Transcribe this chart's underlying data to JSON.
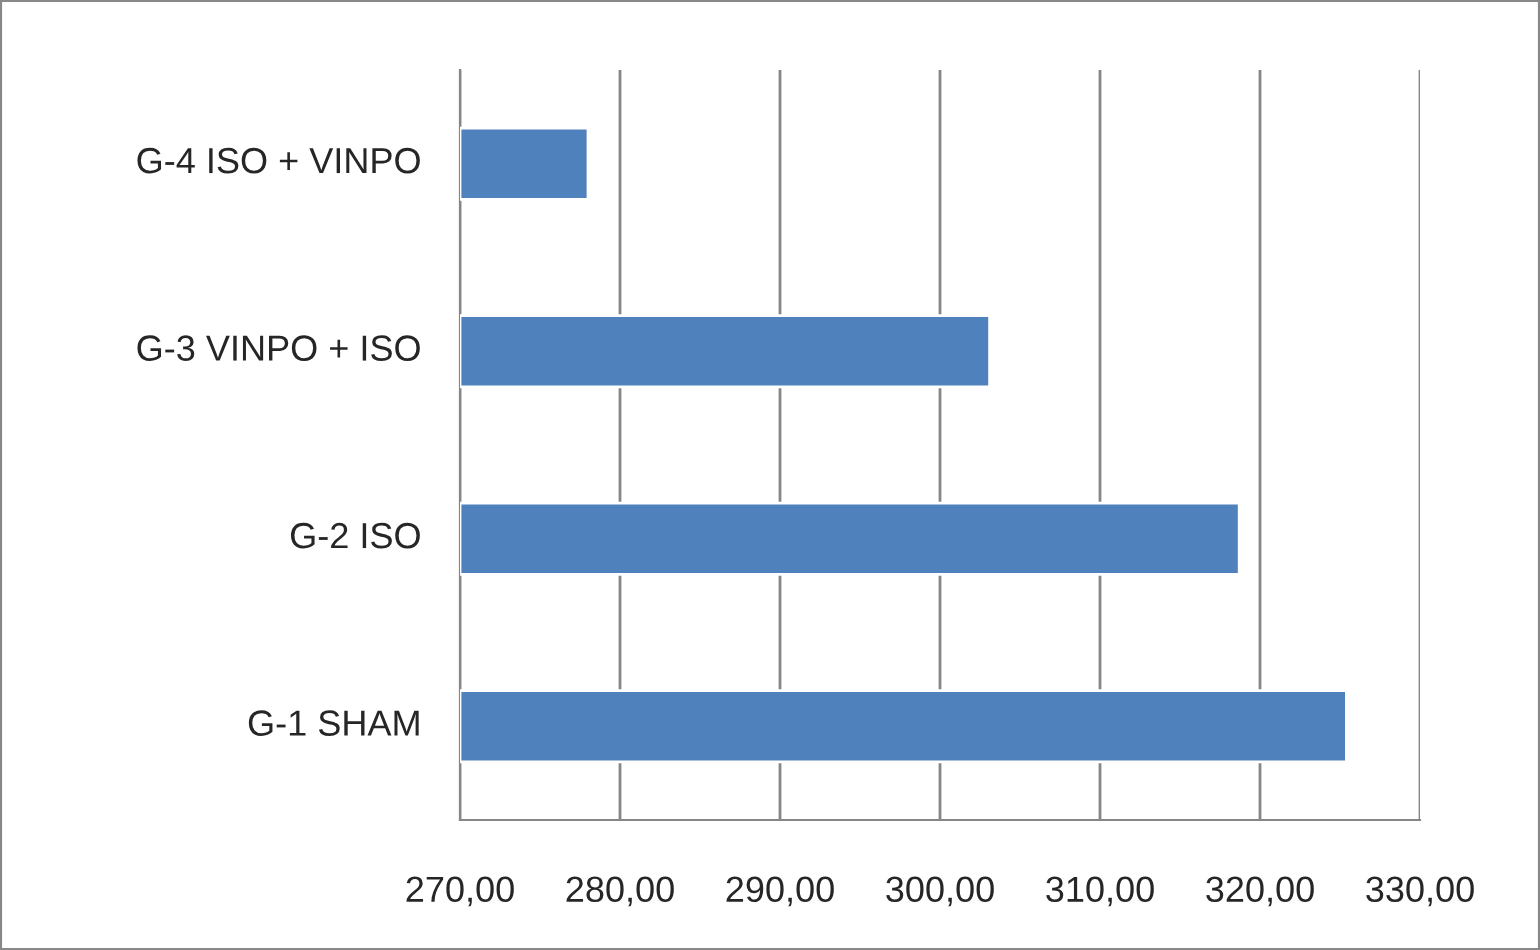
{
  "chart_data": {
    "type": "bar",
    "orientation": "horizontal",
    "categories": [
      "G-4 ISO + VINPO",
      "G-3 VINPO + ISO",
      "G-2 ISO",
      "G-1 SHAM"
    ],
    "values": [
      278.0,
      303.1,
      318.7,
      325.4
    ],
    "color": "#4f81bd",
    "xlim": [
      270,
      330
    ],
    "xticks": [
      {
        "value": 270,
        "label": "270,00"
      },
      {
        "value": 280,
        "label": "280,00"
      },
      {
        "value": 290,
        "label": "290,00"
      },
      {
        "value": 300,
        "label": "300,00"
      },
      {
        "value": 310,
        "label": "310,00"
      },
      {
        "value": 320,
        "label": "320,00"
      },
      {
        "value": 330,
        "label": "330,00"
      }
    ],
    "grid": "x",
    "legend": false
  }
}
